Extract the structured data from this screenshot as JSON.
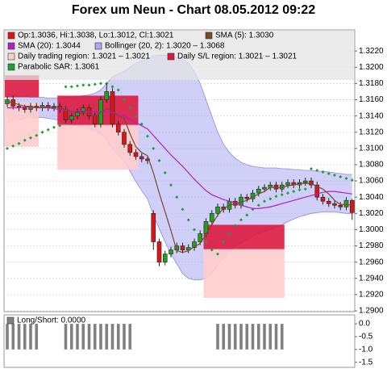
{
  "chart_data": {
    "type": "candlestick",
    "title": "Forex um Neun - Chart 08.05.2012 09:22",
    "open": [
      1.3155,
      1.316,
      1.3152,
      1.315,
      1.3148,
      1.3152,
      1.315,
      1.3153,
      1.315,
      1.3152,
      1.3148,
      1.3135,
      1.314,
      1.3145,
      1.315,
      1.314,
      1.313,
      1.316,
      1.317,
      1.313,
      1.312,
      1.3105,
      1.3095,
      1.309,
      1.3087,
      1.302,
      1.2985,
      1.296,
      1.297,
      1.2975,
      1.298,
      1.2975,
      1.2978,
      1.2985,
      1.2995,
      1.301,
      1.302,
      1.3028,
      1.3025,
      1.3035,
      1.303,
      1.304,
      1.3038,
      1.3045,
      1.305,
      1.3052,
      1.3055,
      1.305,
      1.3055,
      1.3058,
      1.3055,
      1.3058,
      1.306,
      1.3055,
      1.304,
      1.3035,
      1.3032,
      1.303,
      1.3028,
      1.3036
    ],
    "high": [
      1.3164,
      1.3165,
      1.3156,
      1.3154,
      1.3156,
      1.3156,
      1.3157,
      1.3157,
      1.3156,
      1.3156,
      1.3152,
      1.3144,
      1.3149,
      1.3154,
      1.3154,
      1.3144,
      1.3164,
      1.318,
      1.3174,
      1.3134,
      1.3124,
      1.3109,
      1.3099,
      1.3094,
      1.3091,
      1.3024,
      1.2989,
      1.2974,
      1.2979,
      1.2984,
      1.2984,
      1.2982,
      1.2989,
      1.2999,
      1.3014,
      1.3024,
      1.3032,
      1.3032,
      1.3039,
      1.3039,
      1.3044,
      1.3044,
      1.3049,
      1.3054,
      1.3056,
      1.3059,
      1.3059,
      1.3059,
      1.3062,
      1.3062,
      1.3062,
      1.3064,
      1.3064,
      1.3059,
      1.3044,
      1.3039,
      1.3036,
      1.3034,
      1.304,
      1.3038
    ],
    "low": [
      1.3151,
      1.3148,
      1.3146,
      1.3144,
      1.3144,
      1.3146,
      1.3146,
      1.3146,
      1.3146,
      1.3144,
      1.3131,
      1.3131,
      1.3136,
      1.3141,
      1.3136,
      1.3126,
      1.3126,
      1.3156,
      1.3126,
      1.3116,
      1.3101,
      1.3091,
      1.3086,
      1.3083,
      1.3081,
      1.2975,
      1.2955,
      1.2956,
      1.2966,
      1.2971,
      1.2971,
      1.2971,
      1.2974,
      1.2981,
      1.2991,
      1.3006,
      1.3016,
      1.3021,
      1.3021,
      1.3026,
      1.3026,
      1.3034,
      1.3034,
      1.3041,
      1.3046,
      1.3048,
      1.3046,
      1.3046,
      1.3051,
      1.3051,
      1.3051,
      1.3054,
      1.3051,
      1.3036,
      1.3031,
      1.3028,
      1.3026,
      1.3024,
      1.3024,
      1.3012
    ],
    "close": [
      1.316,
      1.3152,
      1.315,
      1.3148,
      1.3152,
      1.315,
      1.3153,
      1.315,
      1.3152,
      1.3148,
      1.3135,
      1.314,
      1.3145,
      1.315,
      1.314,
      1.313,
      1.316,
      1.317,
      1.313,
      1.312,
      1.3105,
      1.3095,
      1.309,
      1.3087,
      1.3085,
      1.2985,
      1.296,
      1.297,
      1.2975,
      1.298,
      1.2975,
      1.2978,
      1.2985,
      1.2995,
      1.301,
      1.302,
      1.3028,
      1.3025,
      1.3035,
      1.303,
      1.304,
      1.3038,
      1.3045,
      1.305,
      1.3052,
      1.3055,
      1.305,
      1.3055,
      1.3058,
      1.3055,
      1.3058,
      1.306,
      1.3055,
      1.304,
      1.3035,
      1.3032,
      1.303,
      1.3028,
      1.3036,
      1.3021
    ],
    "up_color": "#22a022",
    "down_color": "#d81818",
    "sma5": {
      "color": "#7a4a2a",
      "values": [
        1.3158,
        1.3156,
        1.3154,
        1.3152,
        1.3152,
        1.315,
        1.3151,
        1.3151,
        1.3151,
        1.3151,
        1.3148,
        1.3145,
        1.3144,
        1.3144,
        1.3142,
        1.314,
        1.3145,
        1.3149,
        1.3146,
        1.314,
        1.3137,
        1.3118,
        1.3102,
        1.3095,
        1.3091,
        1.307,
        1.3045,
        1.3022,
        1.2999,
        1.2974,
        1.2972,
        1.2974,
        1.2979,
        1.2983,
        1.2994,
        1.3006,
        1.3018,
        1.3026,
        1.303,
        1.3032,
        1.3034,
        1.3036,
        1.304,
        1.3044,
        1.3047,
        1.3052,
        1.3052,
        1.3052,
        1.3054,
        1.3055,
        1.3057,
        1.3057,
        1.3057,
        1.3053,
        1.305,
        1.3044,
        1.3036,
        1.3031,
        1.3031,
        1.303
      ]
    },
    "sma20": {
      "color": "#b020c8",
      "values": [
        1.315,
        1.315,
        1.315,
        1.3151,
        1.3151,
        1.315,
        1.315,
        1.315,
        1.3149,
        1.3148,
        1.3147,
        1.3146,
        1.3146,
        1.3146,
        1.3145,
        1.3145,
        1.3145,
        1.3145,
        1.3144,
        1.3142,
        1.314,
        1.3136,
        1.3132,
        1.3128,
        1.3124,
        1.3116,
        1.3108,
        1.31,
        1.3092,
        1.3085,
        1.3078,
        1.307,
        1.3062,
        1.3055,
        1.3048,
        1.3043,
        1.304,
        1.3037,
        1.3035,
        1.3033,
        1.303,
        1.3028,
        1.3026,
        1.3026,
        1.3027,
        1.3028,
        1.303,
        1.3032,
        1.3034,
        1.3036,
        1.3038,
        1.304,
        1.3042,
        1.3044,
        1.3046,
        1.3047,
        1.3047,
        1.3046,
        1.3045,
        1.3044
      ]
    },
    "bollinger": {
      "color": "#a8a8f0",
      "upper": [
        1.3168,
        1.3166,
        1.3165,
        1.3164,
        1.3163,
        1.3163,
        1.3163,
        1.3162,
        1.3162,
        1.3162,
        1.3163,
        1.3163,
        1.3164,
        1.3165,
        1.3166,
        1.3168,
        1.3172,
        1.318,
        1.3188,
        1.3192,
        1.3195,
        1.32,
        1.3205,
        1.3208,
        1.321,
        1.3214,
        1.3215,
        1.3215,
        1.3214,
        1.3212,
        1.321,
        1.3205,
        1.3195,
        1.318,
        1.316,
        1.314,
        1.312,
        1.3105,
        1.3095,
        1.3088,
        1.3083,
        1.308,
        1.3078,
        1.3077,
        1.3076,
        1.3076,
        1.3076,
        1.3075,
        1.3075,
        1.3074,
        1.3074,
        1.3073,
        1.3073,
        1.3072,
        1.3072,
        1.3071,
        1.307,
        1.3069,
        1.3068,
        1.3068
      ],
      "lower": [
        1.3132,
        1.3134,
        1.3135,
        1.3137,
        1.3138,
        1.3138,
        1.3138,
        1.3137,
        1.3136,
        1.3134,
        1.3131,
        1.3129,
        1.3128,
        1.3127,
        1.3124,
        1.3122,
        1.3118,
        1.311,
        1.31,
        1.3092,
        1.3085,
        1.3072,
        1.3059,
        1.3048,
        1.3038,
        1.3018,
        1.3001,
        1.2985,
        1.297,
        1.2958,
        1.2946,
        1.294,
        1.2938,
        1.2938,
        1.294,
        1.2946,
        1.2956,
        1.2966,
        1.2974,
        1.298,
        1.2984,
        1.2988,
        1.2992,
        1.2996,
        1.2998,
        1.3,
        1.3003,
        1.3006,
        1.301,
        1.3013,
        1.3016,
        1.3018,
        1.302,
        1.3021,
        1.3022,
        1.3022,
        1.3022,
        1.3021,
        1.302,
        1.302
      ]
    },
    "sar": {
      "color": "#1e9e3c",
      "values": [
        1.31,
        1.3103,
        1.3106,
        1.311,
        1.3113,
        1.3116,
        1.312,
        1.3123,
        1.3126,
        1.3128,
        1.3176,
        1.3176,
        1.3177,
        1.3178,
        1.3178,
        1.3179,
        1.318,
        1.318,
        1.3176,
        1.3172,
        1.316,
        1.315,
        1.314,
        1.313,
        1.3115,
        1.31,
        1.3085,
        1.307,
        1.3055,
        1.304,
        1.3025,
        1.3012,
        1.3,
        1.299,
        1.2985,
        1.2975,
        1.297,
        1.2985,
        1.2995,
        1.3005,
        1.3012,
        1.3018,
        1.3025,
        1.303,
        1.3035,
        1.3038,
        1.3041,
        1.3043,
        1.3045,
        1.3047,
        1.3049,
        1.305,
        1.3075,
        1.3073,
        1.3071,
        1.3069,
        1.3067,
        1.3065,
        1.3063,
        1.3061
      ]
    },
    "regions": {
      "trading_color": "#ffcccc",
      "sl_color": "#dc1840",
      "items": [
        {
          "start": 0,
          "end": 5,
          "sl": [
            1.3163,
            1.319
          ],
          "trading": [
            1.3102,
            1.3156
          ]
        },
        {
          "start": 9,
          "end": 22,
          "sl": [
            1.3129,
            1.3165
          ],
          "trading": [
            1.3074,
            1.3129
          ]
        },
        {
          "start": 34,
          "end": 47,
          "sl": [
            1.2976,
            1.3006
          ],
          "trading": [
            1.2916,
            1.2976
          ]
        }
      ]
    },
    "legend": [
      {
        "label": "Op:1.3036, Hi:1.3038, Lo:1.3012, Cl:1.3021",
        "color": "#d81818"
      },
      {
        "label": "SMA (5): 1.3030",
        "color": "#7a4a2a"
      },
      {
        "label": "SMA (20): 1.3044",
        "color": "#b020c8"
      },
      {
        "label": "Bollinger (20, 2): 1.3020 – 1.3068",
        "color": "#a8a8f0"
      },
      {
        "label": "Daily trading region: 1.3021 – 1.3021",
        "color": "#ffcccc"
      },
      {
        "label": "Daily S/L region: 1.3021 – 1.3021",
        "color": "#dc1840"
      },
      {
        "label": "Parabolic SAR: 1.3061",
        "color": "#1e9e3c"
      }
    ],
    "ylim": [
      1.2899,
      1.3246
    ],
    "yticks": [
      {
        "value": 1.29,
        "label": "1.2900"
      },
      {
        "value": 1.292,
        "label": "1.2920"
      },
      {
        "value": 1.294,
        "label": "1.2940"
      },
      {
        "value": 1.296,
        "label": "1.2960"
      },
      {
        "value": 1.298,
        "label": "1.2980"
      },
      {
        "value": 1.3,
        "label": "1.3000"
      },
      {
        "value": 1.302,
        "label": "1.3020"
      },
      {
        "value": 1.304,
        "label": "1.3040"
      },
      {
        "value": 1.306,
        "label": "1.3060"
      },
      {
        "value": 1.308,
        "label": "1.3080"
      },
      {
        "value": 1.31,
        "label": "1.3100"
      },
      {
        "value": 1.312,
        "label": "1.3120"
      },
      {
        "value": 1.314,
        "label": "1.3140"
      },
      {
        "value": 1.316,
        "label": "1.3160"
      },
      {
        "value": 1.318,
        "label": "1.3180"
      },
      {
        "value": 1.32,
        "label": "1.3200"
      },
      {
        "value": 1.322,
        "label": "1.3220"
      }
    ],
    "grid": true,
    "long_short": {
      "label": "Long/Short: 0.0000",
      "color": "#808080",
      "values": [
        -1,
        -1,
        -1,
        -1,
        -1,
        -1,
        0,
        0,
        0,
        0,
        -1,
        -1,
        -1,
        -1,
        -1,
        -1,
        -1,
        -1,
        -1,
        -1,
        -1,
        -1,
        0,
        0,
        0,
        0,
        0,
        0,
        0,
        0,
        0,
        0,
        0,
        0,
        0,
        0,
        -1,
        -1,
        -1,
        -1,
        -1,
        -1,
        -1,
        -1,
        -1,
        -1,
        -1,
        -1,
        0,
        0,
        0,
        0,
        0,
        0,
        0,
        0,
        0,
        0,
        0,
        0
      ],
      "ylim": [
        -1.7,
        0.35
      ],
      "yticks": [
        {
          "value": 0,
          "label": "0.0"
        },
        -0.5,
        {
          "value": -1,
          "label": "-1.0"
        },
        -1.5
      ]
    }
  }
}
